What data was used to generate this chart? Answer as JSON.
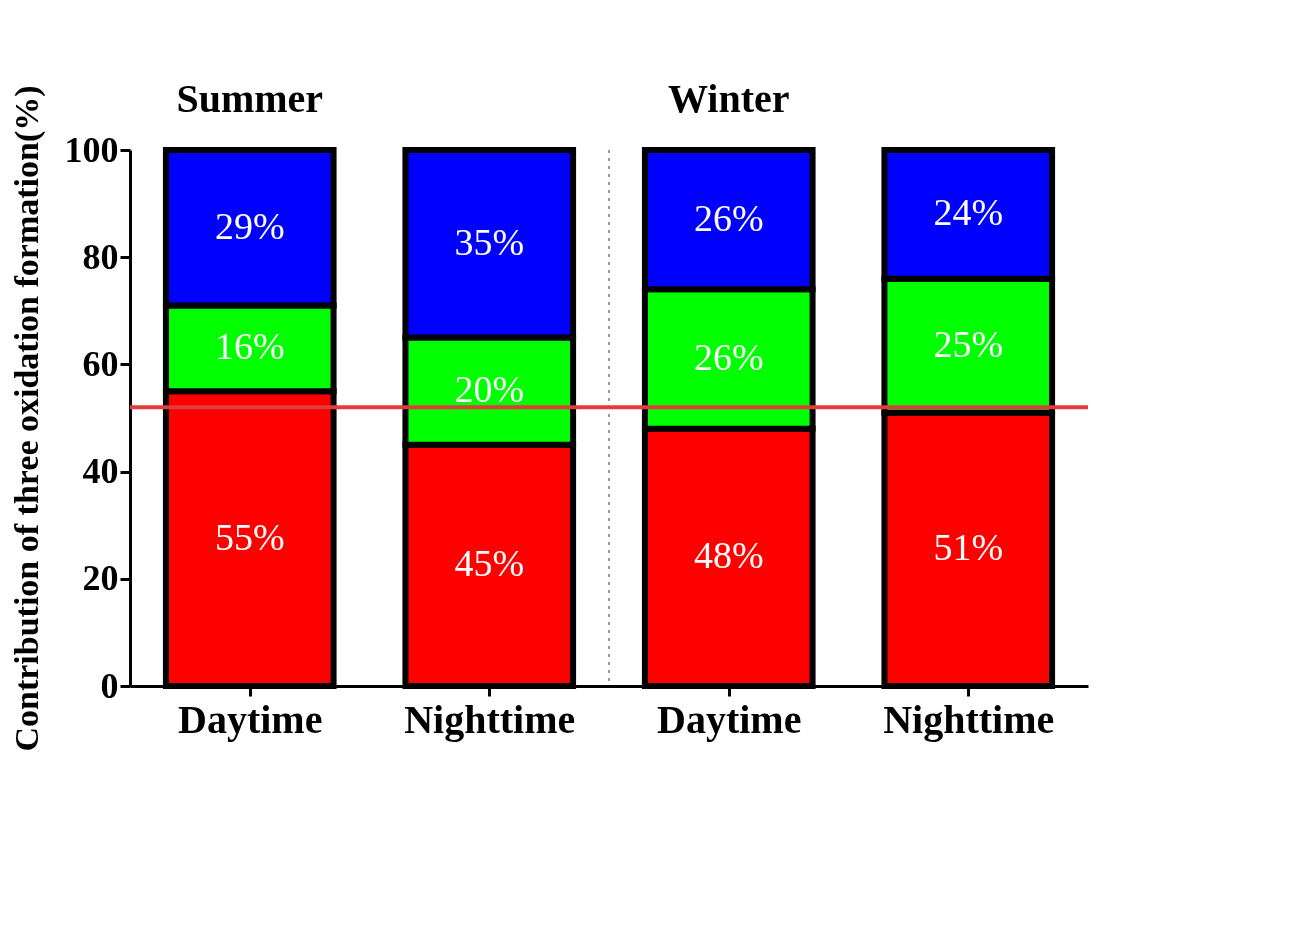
{
  "chart_data": {
    "type": "bar",
    "stacked": true,
    "categories": [
      "Daytime",
      "Nighttime",
      "Daytime",
      "Nighttime"
    ],
    "ylabel": "Contribution of three oxidation formation(%)",
    "series": [
      {
        "color": "#ff0000",
        "values": [
          55,
          45,
          48,
          51
        ],
        "value_labels": [
          "55%",
          "45%",
          "48%",
          "51%"
        ]
      },
      {
        "color": "#00ff00",
        "values": [
          16,
          20,
          26,
          25
        ],
        "value_labels": [
          "16%",
          "20%",
          "26%",
          "25%"
        ]
      },
      {
        "color": "#0000ff",
        "values": [
          29,
          35,
          26,
          24
        ],
        "value_labels": [
          "29%",
          "35%",
          "26%",
          "24%"
        ]
      }
    ],
    "ylim": [
      0,
      100
    ],
    "yticks": [
      0,
      20,
      40,
      60,
      80,
      100
    ],
    "grid": false,
    "annotations": [
      "Summer",
      "Winter"
    ],
    "ref_lines": [
      {
        "axis": "y",
        "value": 52,
        "color": "#e03c3c",
        "line_style": "solid"
      }
    ]
  }
}
